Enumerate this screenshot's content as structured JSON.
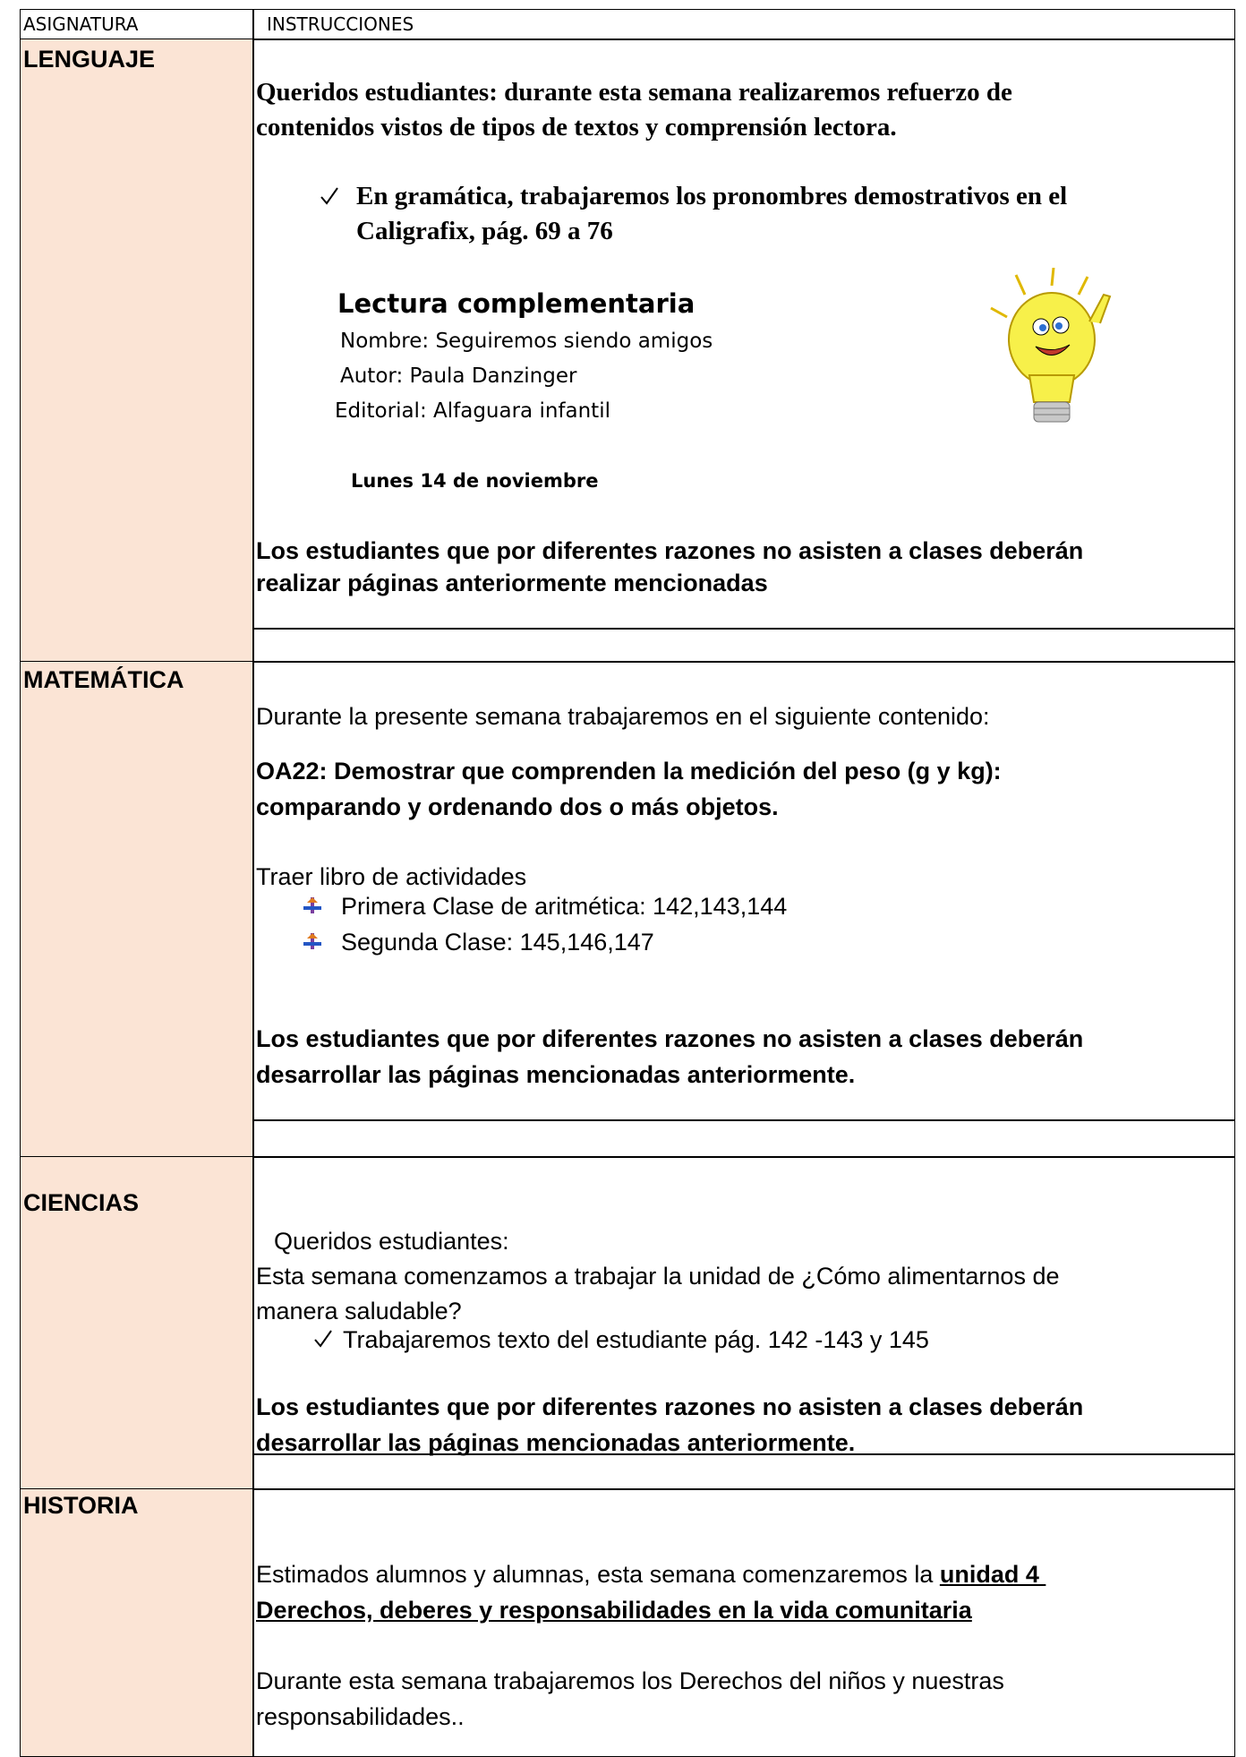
{
  "table": {
    "headers": [
      "ASIGNATURA",
      "INSTRUCCIONES"
    ],
    "lenguaje": {
      "subject": "LENGUAJE",
      "intro": [
        "Queridos estudiantes: durante esta semana realizaremos refuerzo de",
        "contenidos vistos de tipos de textos y comprensión lectora."
      ],
      "check": [
        "En gramática, trabajaremos los pronombres demostrativos en el",
        "Caligrafix, pág. 69 a 76"
      ],
      "reading_title": "Lectura complementaria",
      "reading": [
        "Nombre: Seguiremos siendo amigos",
        "Autor: Paula Danzinger",
        "Editorial: Alfaguara infantil"
      ],
      "date": "Lunes 14 de noviembre",
      "note": [
        "Los estudiantes que por diferentes razones no asisten a clases deberán",
        "realizar páginas anteriormente mencionadas"
      ]
    },
    "matematica": {
      "subject": "MATEMÁTICA",
      "intro": "Durante la presente semana trabajaremos en el siguiente contenido:",
      "objective": [
        "OA22: Demostrar que comprenden la medición del peso (g y kg):",
        "comparando y ordenando dos o más objetos."
      ],
      "bring": "Traer libro de actividades",
      "items": [
        "Primera Clase de aritmética: 142,143,144",
        "Segunda Clase: 145,146,147"
      ],
      "note": [
        "Los estudiantes que por diferentes razones no asisten a clases deberán",
        "desarrollar las páginas mencionadas anteriormente."
      ]
    },
    "ciencias": {
      "subject": "CIENCIAS",
      "greeting": "Queridos estudiantes:",
      "intro": [
        "Esta semana comenzamos a trabajar la unidad de ¿Cómo alimentarnos de",
        "manera saludable?"
      ],
      "check": "Trabajaremos texto del estudiante pág. 142 -143 y 145",
      "note": [
        "Los estudiantes que por diferentes razones no asisten a clases deberán",
        "desarrollar las páginas mencionadas anteriormente."
      ]
    },
    "historia": {
      "subject": "HISTORIA",
      "intro": "Estimados alumnos y alumnas, esta semana comenzaremos la ",
      "unit": [
        "unidad 4 ",
        "Derechos, deberes y responsabilidades en la vida comunitaria"
      ],
      "text": [
        "Durante esta semana trabajaremos los Derechos del niños y nuestras",
        "responsabilidades.."
      ]
    }
  }
}
